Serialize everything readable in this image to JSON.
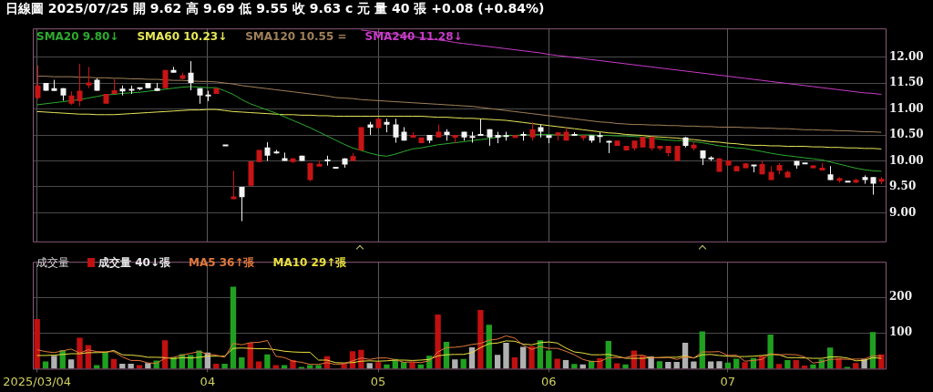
{
  "chart_data": [
    {
      "type": "candlestick",
      "title": "日線圖 2025/07/25 開 9.62 高 9.69 低 9.55 收 9.63 c 元 量 40 張 +0.08 (+0.84%)",
      "categories": [
        "2025/03/04",
        null,
        null,
        null,
        null,
        null,
        null,
        null,
        null,
        null,
        null,
        null,
        null,
        null,
        null,
        null,
        null,
        null,
        null,
        null,
        "04",
        null,
        null,
        null,
        null,
        null,
        null,
        null,
        null,
        null,
        null,
        null,
        null,
        null,
        null,
        null,
        null,
        null,
        null,
        null,
        "05",
        null,
        null,
        null,
        null,
        null,
        null,
        null,
        null,
        null,
        null,
        null,
        null,
        null,
        null,
        null,
        null,
        null,
        null,
        null,
        "06",
        null,
        null,
        null,
        null,
        null,
        null,
        null,
        null,
        null,
        null,
        null,
        null,
        null,
        null,
        null,
        null,
        null,
        null,
        null,
        null,
        "07",
        null,
        null,
        null,
        null,
        null,
        null,
        null,
        null,
        null,
        null,
        null,
        null,
        null,
        null,
        null,
        null,
        null,
        null
      ],
      "ohlc": [
        [
          11.21,
          11.84,
          11.19,
          11.45
        ],
        [
          11.5,
          11.5,
          11.35,
          11.35
        ],
        [
          11.4,
          11.56,
          11.35,
          11.35
        ],
        [
          11.4,
          11.4,
          11.16,
          11.26
        ],
        [
          11.1,
          11.34,
          11.08,
          11.26
        ],
        [
          11.15,
          11.87,
          11.05,
          11.35
        ],
        [
          11.45,
          11.81,
          11.4,
          11.51
        ],
        [
          11.56,
          11.59,
          11.35,
          11.35
        ],
        [
          11.1,
          11.29,
          11.1,
          11.29
        ],
        [
          11.29,
          11.57,
          11.29,
          11.36
        ],
        [
          11.37,
          11.45,
          11.26,
          11.36
        ],
        [
          11.37,
          11.45,
          11.29,
          11.37
        ],
        [
          11.4,
          11.4,
          11.36,
          11.4
        ],
        [
          11.5,
          11.5,
          11.4,
          11.4
        ],
        [
          11.4,
          11.5,
          11.35,
          11.35
        ],
        [
          11.4,
          11.75,
          11.4,
          11.75
        ],
        [
          11.75,
          11.81,
          11.7,
          11.7
        ],
        [
          11.58,
          11.7,
          11.57,
          11.65
        ],
        [
          11.7,
          11.92,
          11.36,
          11.5
        ],
        [
          11.4,
          11.4,
          11.1,
          11.26
        ],
        [
          11.26,
          11.35,
          11.15,
          11.26
        ],
        [
          11.29,
          11.4,
          11.29,
          11.4
        ],
        [
          10.3,
          10.3,
          10.3,
          10.3
        ],
        [
          9.27,
          9.81,
          9.27,
          9.31
        ],
        [
          9.5,
          9.5,
          8.84,
          9.3
        ],
        [
          9.52,
          10.0,
          9.52,
          9.99
        ],
        [
          9.98,
          10.21,
          9.98,
          10.21
        ],
        [
          10.26,
          10.36,
          10.0,
          10.1
        ],
        [
          10.16,
          10.21,
          10.14,
          10.16
        ],
        [
          10.05,
          10.16,
          10.0,
          10.0
        ],
        [
          9.98,
          10.05,
          9.96,
          10.05
        ],
        [
          10.1,
          10.1,
          10.0,
          10.0
        ],
        [
          9.63,
          9.96,
          9.61,
          9.96
        ],
        [
          9.9,
          10.01,
          9.9,
          9.93
        ],
        [
          10.01,
          10.1,
          9.91,
          10.01
        ],
        [
          9.87,
          9.87,
          9.87,
          9.87
        ],
        [
          10.05,
          10.05,
          9.87,
          9.93
        ],
        [
          10.0,
          10.15,
          10.0,
          10.09
        ],
        [
          10.2,
          10.65,
          10.2,
          10.65
        ],
        [
          10.7,
          10.75,
          10.5,
          10.64
        ],
        [
          10.63,
          10.81,
          10.63,
          10.81
        ],
        [
          10.75,
          10.81,
          10.55,
          10.7
        ],
        [
          10.7,
          10.81,
          10.35,
          10.45
        ],
        [
          10.56,
          10.65,
          10.39,
          10.39
        ],
        [
          10.45,
          10.55,
          10.45,
          10.5
        ],
        [
          10.34,
          10.45,
          10.34,
          10.45
        ],
        [
          10.5,
          10.5,
          10.34,
          10.39
        ],
        [
          10.45,
          10.7,
          10.45,
          10.56
        ],
        [
          10.56,
          10.61,
          10.39,
          10.5
        ],
        [
          10.45,
          10.5,
          10.34,
          10.5
        ],
        [
          10.56,
          10.56,
          10.39,
          10.45
        ],
        [
          10.46,
          10.56,
          10.35,
          10.46
        ],
        [
          10.5,
          10.81,
          10.5,
          10.5
        ],
        [
          10.61,
          10.61,
          10.29,
          10.45
        ],
        [
          10.5,
          10.56,
          10.34,
          10.45
        ],
        [
          10.48,
          10.56,
          10.39,
          10.48
        ],
        [
          10.45,
          10.49,
          10.45,
          10.49
        ],
        [
          10.5,
          10.56,
          10.39,
          10.5
        ],
        [
          10.45,
          10.75,
          10.39,
          10.61
        ],
        [
          10.65,
          10.7,
          10.45,
          10.56
        ],
        [
          10.49,
          10.49,
          10.34,
          10.45
        ],
        [
          10.49,
          10.55,
          10.39,
          10.55
        ],
        [
          10.39,
          10.64,
          10.39,
          10.56
        ],
        [
          10.5,
          10.55,
          10.48,
          10.5
        ],
        [
          10.44,
          10.49,
          10.39,
          10.49
        ],
        [
          10.49,
          10.49,
          10.35,
          10.39
        ],
        [
          10.48,
          10.55,
          10.35,
          10.48
        ],
        [
          10.37,
          10.39,
          10.15,
          10.37
        ],
        [
          10.29,
          10.39,
          10.29,
          10.39
        ],
        [
          10.2,
          10.29,
          10.2,
          10.29
        ],
        [
          10.24,
          10.39,
          10.2,
          10.39
        ],
        [
          10.26,
          10.46,
          10.26,
          10.46
        ],
        [
          10.24,
          10.46,
          10.2,
          10.46
        ],
        [
          10.24,
          10.29,
          10.2,
          10.29
        ],
        [
          10.15,
          10.29,
          10.09,
          10.29
        ],
        [
          10.0,
          10.29,
          10.0,
          10.29
        ],
        [
          10.45,
          10.46,
          10.26,
          10.29
        ],
        [
          10.24,
          10.37,
          10.2,
          10.31
        ],
        [
          10.2,
          10.2,
          9.92,
          10.05
        ],
        [
          10.05,
          10.09,
          10.0,
          10.05
        ],
        [
          9.79,
          10.05,
          9.79,
          10.05
        ],
        [
          9.91,
          10.01,
          9.91,
          10.01
        ],
        [
          9.8,
          9.91,
          9.8,
          9.9
        ],
        [
          9.86,
          9.96,
          9.86,
          9.95
        ],
        [
          9.91,
          9.92,
          9.78,
          9.91
        ],
        [
          9.74,
          10.0,
          9.74,
          9.94
        ],
        [
          9.63,
          9.9,
          9.63,
          9.79
        ],
        [
          9.81,
          9.96,
          9.74,
          9.92
        ],
        [
          9.68,
          9.81,
          9.68,
          9.79
        ],
        [
          10.0,
          10.0,
          9.85,
          9.91
        ],
        [
          9.95,
          9.95,
          9.95,
          9.95
        ],
        [
          9.86,
          9.92,
          9.86,
          9.91
        ],
        [
          9.82,
          9.96,
          9.82,
          9.86
        ],
        [
          9.74,
          9.9,
          9.63,
          9.63
        ],
        [
          9.63,
          9.69,
          9.58,
          9.65
        ],
        [
          9.6,
          9.6,
          9.6,
          9.6
        ],
        [
          9.59,
          9.66,
          9.57,
          9.63
        ],
        [
          9.69,
          9.72,
          9.56,
          9.63
        ],
        [
          9.69,
          9.69,
          9.35,
          9.56
        ],
        [
          9.62,
          9.69,
          9.55,
          9.63
        ]
      ],
      "series": [
        {
          "type": "line",
          "name": "SMA20 9.80↓",
          "color": "#2eaa2e",
          "values": [
            11.08,
            11.1,
            11.12,
            11.14,
            11.16,
            11.18,
            11.21,
            11.24,
            11.27,
            11.28,
            11.3,
            11.31,
            11.32,
            11.34,
            11.36,
            11.38,
            11.4,
            11.42,
            11.43,
            11.42,
            11.41,
            11.41,
            11.35,
            11.28,
            11.18,
            11.1,
            11.04,
            10.98,
            10.92,
            10.85,
            10.78,
            10.71,
            10.64,
            10.56,
            10.48,
            10.4,
            10.32,
            10.25,
            10.2,
            10.15,
            10.11,
            10.09,
            10.13,
            10.18,
            10.23,
            10.25,
            10.28,
            10.31,
            10.33,
            10.35,
            10.37,
            10.39,
            10.41,
            10.43,
            10.46,
            10.49,
            10.49,
            10.5,
            10.5,
            10.51,
            10.51,
            10.5,
            10.5,
            10.5,
            10.5,
            10.5,
            10.49,
            10.49,
            10.48,
            10.48,
            10.47,
            10.46,
            10.44,
            10.42,
            10.4,
            10.39,
            10.39,
            10.37,
            10.35,
            10.32,
            10.29,
            10.27,
            10.25,
            10.24,
            10.21,
            10.18,
            10.15,
            10.12,
            10.1,
            10.08,
            10.06,
            10.04,
            10.02,
            9.98,
            9.94,
            9.9,
            9.86,
            9.83,
            9.81,
            9.8
          ]
        },
        {
          "type": "line",
          "name": "SMA60 10.23↓",
          "color": "#e6e65a",
          "values": [
            10.95,
            10.94,
            10.93,
            10.92,
            10.91,
            10.9,
            10.9,
            10.89,
            10.89,
            10.89,
            10.9,
            10.91,
            10.92,
            10.93,
            10.94,
            10.95,
            10.96,
            10.97,
            10.98,
            10.98,
            10.99,
            10.99,
            10.97,
            10.95,
            10.94,
            10.93,
            10.92,
            10.91,
            10.9,
            10.89,
            10.89,
            10.88,
            10.88,
            10.87,
            10.87,
            10.86,
            10.86,
            10.86,
            10.86,
            10.86,
            10.86,
            10.86,
            10.86,
            10.86,
            10.86,
            10.86,
            10.85,
            10.84,
            10.84,
            10.83,
            10.82,
            10.82,
            10.81,
            10.8,
            10.79,
            10.78,
            10.76,
            10.74,
            10.72,
            10.7,
            10.68,
            10.66,
            10.64,
            10.62,
            10.6,
            10.58,
            10.56,
            10.54,
            10.53,
            10.51,
            10.5,
            10.49,
            10.47,
            10.46,
            10.45,
            10.44,
            10.42,
            10.41,
            10.39,
            10.37,
            10.36,
            10.34,
            10.33,
            10.31,
            10.3,
            10.3,
            10.29,
            10.29,
            10.28,
            10.28,
            10.28,
            10.27,
            10.27,
            10.26,
            10.26,
            10.25,
            10.25,
            10.24,
            10.24,
            10.23
          ]
        },
        {
          "type": "line",
          "name": "SMA120 10.55 =",
          "color": "#a0805a",
          "values": [
            11.63,
            11.63,
            11.62,
            11.62,
            11.62,
            11.61,
            11.61,
            11.6,
            11.6,
            11.59,
            11.59,
            11.58,
            11.58,
            11.57,
            11.57,
            11.56,
            11.55,
            11.55,
            11.54,
            11.53,
            11.53,
            11.52,
            11.5,
            11.48,
            11.45,
            11.43,
            11.41,
            11.39,
            11.37,
            11.35,
            11.33,
            11.31,
            11.29,
            11.27,
            11.25,
            11.22,
            11.21,
            11.2,
            11.18,
            11.17,
            11.16,
            11.15,
            11.14,
            11.13,
            11.12,
            11.11,
            11.1,
            11.09,
            11.08,
            11.07,
            11.06,
            11.05,
            11.03,
            11.01,
            10.99,
            10.97,
            10.95,
            10.93,
            10.91,
            10.89,
            10.87,
            10.85,
            10.83,
            10.81,
            10.79,
            10.77,
            10.75,
            10.74,
            10.72,
            10.71,
            10.7,
            10.7,
            10.69,
            10.69,
            10.68,
            10.68,
            10.67,
            10.67,
            10.66,
            10.66,
            10.65,
            10.65,
            10.65,
            10.64,
            10.64,
            10.63,
            10.63,
            10.62,
            10.62,
            10.61,
            10.6,
            10.6,
            10.59,
            10.59,
            10.58,
            10.58,
            10.57,
            10.56,
            10.56,
            10.55
          ]
        },
        {
          "type": "line",
          "name": "SMA240 11.28↓",
          "color": "#c83cc8",
          "values": [
            null,
            null,
            null,
            null,
            null,
            null,
            null,
            null,
            null,
            null,
            null,
            null,
            null,
            null,
            null,
            null,
            null,
            null,
            null,
            null,
            null,
            null,
            null,
            null,
            null,
            null,
            null,
            null,
            null,
            null,
            null,
            null,
            null,
            null,
            null,
            null,
            null,
            null,
            12.52,
            12.5,
            12.48,
            12.46,
            12.44,
            12.41,
            12.39,
            12.37,
            12.35,
            12.33,
            12.31,
            12.28,
            12.26,
            12.24,
            12.22,
            12.2,
            12.18,
            12.16,
            12.14,
            12.12,
            12.1,
            12.08,
            12.05,
            12.03,
            12.01,
            11.99,
            11.97,
            11.95,
            11.93,
            11.91,
            11.89,
            11.87,
            11.85,
            11.83,
            11.81,
            11.79,
            11.77,
            11.75,
            11.73,
            11.71,
            11.69,
            11.67,
            11.65,
            11.63,
            11.61,
            11.59,
            11.57,
            11.55,
            11.53,
            11.51,
            11.49,
            11.47,
            11.45,
            11.43,
            11.41,
            11.39,
            11.37,
            11.35,
            11.33,
            11.31,
            11.3,
            11.28
          ]
        }
      ],
      "ylim": [
        8.45,
        12.55
      ],
      "yticks": [
        {
          "value": 9,
          "label": "9.00"
        },
        {
          "value": 9.5,
          "label": "9.50"
        },
        {
          "value": 10,
          "label": "10.00"
        },
        {
          "value": 10.5,
          "label": "10.50"
        },
        {
          "value": 11,
          "label": "11.00"
        },
        {
          "value": 11.5,
          "label": "11.50"
        },
        {
          "value": 12,
          "label": "12.00"
        }
      ],
      "grid": true,
      "legend": "top left",
      "tick_labels": "y"
    },
    {
      "type": "bar",
      "title": "成交量",
      "categories": [
        "2025/03/04",
        null,
        null,
        null,
        null,
        null,
        null,
        null,
        null,
        null,
        null,
        null,
        null,
        null,
        null,
        null,
        null,
        null,
        null,
        null,
        "04",
        null,
        null,
        null,
        null,
        null,
        null,
        null,
        null,
        null,
        null,
        null,
        null,
        null,
        null,
        null,
        null,
        null,
        null,
        null,
        "05",
        null,
        null,
        null,
        null,
        null,
        null,
        null,
        null,
        null,
        null,
        null,
        null,
        null,
        null,
        null,
        null,
        null,
        null,
        null,
        "06",
        null,
        null,
        null,
        null,
        null,
        null,
        null,
        null,
        null,
        null,
        null,
        null,
        null,
        null,
        null,
        null,
        null,
        null,
        null,
        null,
        "07",
        null,
        null,
        null,
        null,
        null,
        null,
        null,
        null,
        null,
        null,
        null,
        null,
        null,
        null,
        null,
        null,
        null,
        null
      ],
      "series": [
        {
          "type": "bar",
          "name": "成交量 40↓張",
          "values": [
            139,
            20,
            36,
            52,
            26,
            87,
            66,
            10,
            48,
            27,
            14,
            14,
            10,
            16,
            23,
            80,
            32,
            41,
            38,
            51,
            45,
            14,
            14,
            230,
            32,
            73,
            20,
            40,
            10,
            10,
            24,
            5,
            10,
            10,
            35,
            0,
            14,
            49,
            53,
            16,
            18,
            12,
            27,
            18,
            18,
            12,
            36,
            152,
            75,
            26,
            27,
            60,
            165,
            123,
            39,
            73,
            32,
            61,
            63,
            80,
            51,
            28,
            24,
            13,
            12,
            22,
            29,
            78,
            15,
            12,
            51,
            36,
            34,
            21,
            19,
            19,
            73,
            20,
            105,
            20,
            21,
            17,
            28,
            18,
            30,
            36,
            96,
            13,
            24,
            24,
            9,
            12,
            26,
            59,
            30,
            5,
            16,
            27,
            103,
            40
          ],
          "colors": [
            "#c01010",
            "#20a020",
            "#b0b0b0",
            "#20a020",
            "#b0b0b0",
            "#c01010",
            "#c01010",
            "#20a020",
            "#20a020",
            "#c01010",
            "#b0b0b0",
            "#b0b0b0",
            "#c01010",
            "#b0b0b0",
            "#20a020",
            "#c01010",
            "#20a020",
            "#20a020",
            "#20a020",
            "#20a020",
            "#b0b0b0",
            "#c01010",
            "#20a020",
            "#20a020",
            "#20a020",
            "#c01010",
            "#c01010",
            "#20a020",
            "#c01010",
            "#20a020",
            "#c01010",
            "#20a020",
            "#20a020",
            "#20a020",
            "#c01010",
            "#b0b0b0",
            "#c01010",
            "#c01010",
            "#c01010",
            "#b0b0b0",
            "#c01010",
            "#20a020",
            "#20a020",
            "#20a020",
            "#c01010",
            "#20a020",
            "#20a020",
            "#c01010",
            "#20a020",
            "#b0b0b0",
            "#20a020",
            "#b0b0b0",
            "#c01010",
            "#20a020",
            "#b0b0b0",
            "#b0b0b0",
            "#c01010",
            "#b0b0b0",
            "#c01010",
            "#20a020",
            "#20a020",
            "#c01010",
            "#b0b0b0",
            "#20a020",
            "#b0b0b0",
            "#20a020",
            "#c01010",
            "#20a020",
            "#c01010",
            "#20a020",
            "#c01010",
            "#c01010",
            "#b0b0b0",
            "#20a020",
            "#b0b0b0",
            "#b0b0b0",
            "#b0b0b0",
            "#b0b0b0",
            "#20a020",
            "#b0b0b0",
            "#b0b0b0",
            "#20a020",
            "#20a020",
            "#c01010",
            "#20a020",
            "#c01010",
            "#20a020",
            "#c01010",
            "#20a020",
            "#c01010",
            "#c01010",
            "#20a020",
            "#20a020",
            "#20a020",
            "#c01010",
            "#20a020",
            "#c01010",
            "#b0b0b0",
            "#20a020",
            "#c01010"
          ]
        },
        {
          "type": "line",
          "name": "MA5 36↑張",
          "color": "#e0783a",
          "values": [
            53,
            48,
            45,
            50,
            55,
            44,
            53,
            48,
            47,
            48,
            33,
            23,
            23,
            16,
            15,
            29,
            32,
            38,
            43,
            48,
            41,
            38,
            32,
            71,
            67,
            73,
            74,
            79,
            35,
            31,
            21,
            18,
            12,
            12,
            17,
            12,
            14,
            22,
            30,
            26,
            30,
            30,
            25,
            18,
            19,
            17,
            22,
            47,
            59,
            60,
            63,
            68,
            71,
            80,
            83,
            92,
            86,
            66,
            54,
            62,
            57,
            57,
            49,
            39,
            26,
            20,
            20,
            31,
            31,
            31,
            37,
            38,
            30,
            31,
            32,
            26,
            33,
            30,
            47,
            47,
            48,
            37,
            38,
            21,
            23,
            26,
            42,
            39,
            40,
            39,
            33,
            16,
            19,
            26,
            27,
            26,
            27,
            27,
            36,
            36
          ]
        },
        {
          "type": "line",
          "name": "MA10 29↑張",
          "color": "#e8e040",
          "values": [
            37,
            37,
            38,
            40,
            42,
            42,
            45,
            45,
            46,
            51,
            39,
            38,
            36,
            32,
            32,
            31,
            28,
            31,
            30,
            32,
            35,
            35,
            35,
            57,
            58,
            57,
            56,
            56,
            53,
            49,
            47,
            46,
            46,
            24,
            24,
            17,
            16,
            17,
            21,
            22,
            21,
            22,
            24,
            24,
            23,
            24,
            26,
            36,
            39,
            40,
            40,
            45,
            59,
            70,
            72,
            78,
            77,
            69,
            67,
            73,
            75,
            72,
            58,
            47,
            44,
            39,
            39,
            40,
            35,
            29,
            29,
            29,
            31,
            31,
            32,
            32,
            36,
            30,
            39,
            40,
            37,
            35,
            34,
            34,
            35,
            37,
            40,
            39,
            31,
            31,
            30,
            29,
            29,
            33,
            33,
            30,
            22,
            23,
            31,
            29
          ]
        }
      ],
      "ylim": [
        0,
        300
      ],
      "yticks": [
        100,
        200
      ],
      "grid": true,
      "legend": "top left"
    }
  ]
}
